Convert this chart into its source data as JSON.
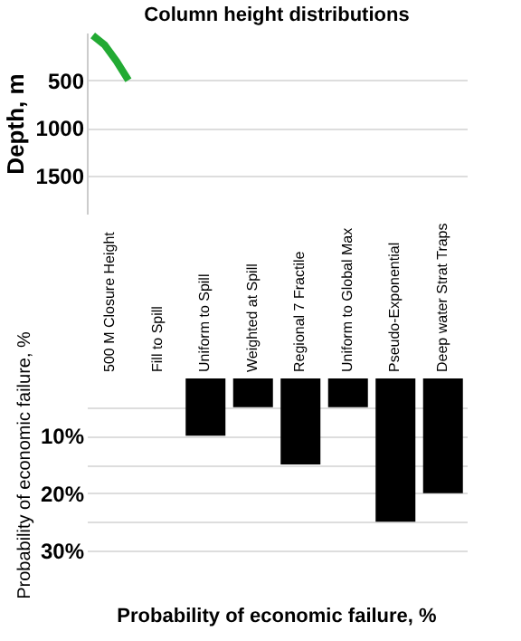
{
  "chart_data": [
    {
      "type": "line",
      "title": "Column height distributions",
      "ylabel": "Depth, m",
      "ylim": [
        1900,
        0
      ],
      "yticks": [
        500,
        1000,
        1500
      ],
      "tick_labels": "y",
      "grid": "y",
      "categories": [
        null,
        null,
        null,
        null,
        null,
        null,
        null,
        null,
        null,
        null,
        null,
        null,
        null,
        null,
        null,
        null,
        null,
        null,
        null,
        null,
        null,
        null,
        null,
        null,
        null,
        null,
        null,
        null,
        null,
        null,
        null,
        null
      ],
      "series": [
        {
          "color": "#22aa33",
          "values": [
            30,
            130,
            300,
            500,
            null,
            null,
            null,
            null,
            null,
            null,
            null,
            null,
            null,
            null,
            null,
            null,
            null,
            null,
            null,
            null,
            null,
            null,
            null,
            null,
            null,
            null,
            null,
            null,
            null,
            null,
            null,
            null
          ]
        }
      ]
    },
    {
      "type": "bar",
      "title": "Probability of economic failure, %",
      "ylabel": "Probability of economic failure, %",
      "categories": [
        "500 M Closure Height",
        "Fill to Spill",
        "Uniform to Spill",
        "Weighted at Spill",
        "Regional 7 Fractile",
        "Uniform to Global Max",
        "Pseudo-Exponential",
        "Deep water Strat Traps"
      ],
      "values": [
        null,
        null,
        10,
        5,
        15,
        5,
        25,
        20
      ],
      "color": "#000000",
      "ylim": [
        30,
        0
      ],
      "yticks": [
        {
          "value": 5,
          "label": null
        },
        {
          "value": 10,
          "label": "10%"
        },
        {
          "value": 15,
          "label": null
        },
        {
          "value": 20,
          "label": "20%"
        },
        {
          "value": 25,
          "label": null
        },
        {
          "value": 30,
          "label": "30%"
        }
      ],
      "grid": "y"
    }
  ]
}
